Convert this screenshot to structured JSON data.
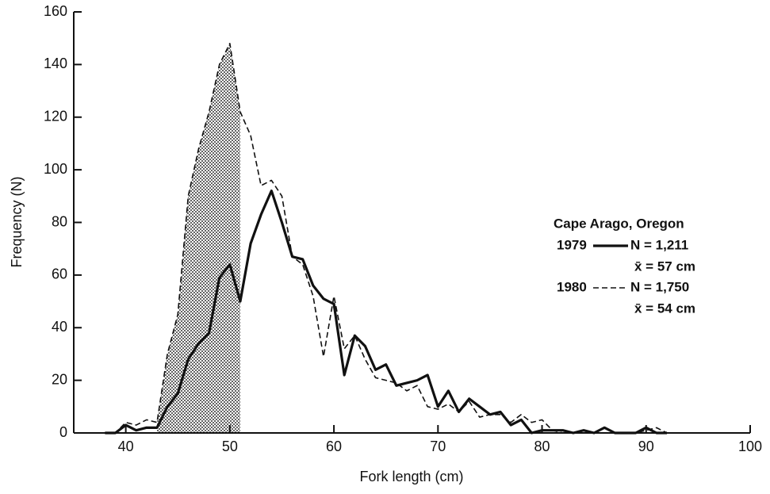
{
  "chart_data": {
    "type": "line",
    "x_label": "Fork length (cm)",
    "y_label": "Frequency (N)",
    "legend_title": "Cape Arago, Oregon",
    "xlim": [
      35,
      100
    ],
    "xticks": [
      40,
      50,
      60,
      70,
      80,
      90,
      100
    ],
    "ylim": [
      0,
      160
    ],
    "yticks": [
      0,
      20,
      40,
      60,
      80,
      100,
      120,
      140,
      160
    ],
    "grid": false,
    "shaded_region": {
      "x": [
        43,
        51
      ],
      "series": 1
    },
    "x": [
      38,
      39,
      40,
      41,
      42,
      43,
      44,
      45,
      46,
      47,
      48,
      49,
      50,
      51,
      52,
      53,
      54,
      55,
      56,
      57,
      58,
      59,
      60,
      61,
      62,
      63,
      64,
      65,
      66,
      67,
      68,
      69,
      70,
      71,
      72,
      73,
      74,
      75,
      76,
      77,
      78,
      79,
      80,
      81,
      82,
      83,
      84,
      85,
      86,
      87,
      88,
      89,
      90,
      91,
      92
    ],
    "series": [
      {
        "name": "1979",
        "color": "#111111",
        "dash": false,
        "n_label": "N = 1,211",
        "mean_label": "x̄ = 57 cm",
        "values": [
          0,
          0,
          3,
          1,
          2,
          2,
          10,
          15,
          28,
          34,
          38,
          59,
          64,
          50,
          72,
          83,
          92,
          80,
          67,
          66,
          56,
          51,
          49,
          22,
          37,
          33,
          24,
          26,
          18,
          19,
          20,
          22,
          10,
          16,
          8,
          13,
          10,
          7,
          8,
          3,
          5,
          0,
          1,
          1,
          1,
          0,
          1,
          0,
          2,
          0,
          0,
          0,
          2,
          0,
          0
        ]
      },
      {
        "name": "1980",
        "color": "#111111",
        "dash": true,
        "n_label": "N = 1,750",
        "mean_label": "x̄ = 54 cm",
        "values": [
          0,
          0,
          4,
          3,
          5,
          4,
          30,
          45,
          90,
          108,
          122,
          140,
          148,
          122,
          113,
          94,
          96,
          90,
          67,
          64,
          52,
          29,
          52,
          32,
          37,
          28,
          21,
          20,
          19,
          16,
          18,
          10,
          9,
          11,
          8,
          12,
          6,
          7,
          7,
          4,
          7,
          4,
          5,
          1,
          0,
          0,
          0,
          0,
          0,
          0,
          0,
          0,
          1,
          2,
          0
        ]
      }
    ]
  }
}
